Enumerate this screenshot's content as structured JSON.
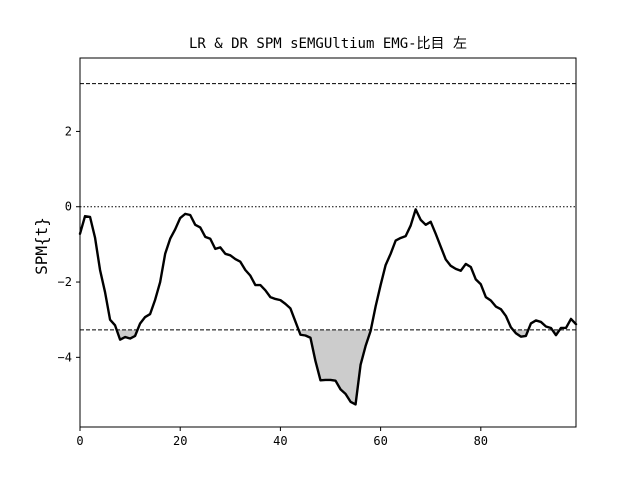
{
  "chart_data": {
    "type": "line",
    "title": "LR & DR SPM sEMGUltium EMG-比目 左",
    "xlabel": "",
    "ylabel": "SPM{t}",
    "xlim": [
      0,
      99
    ],
    "ylim": [
      -5.85,
      3.95
    ],
    "xticks": [
      0,
      20,
      40,
      60,
      80
    ],
    "yticks": [
      -4,
      -2,
      0,
      2
    ],
    "grid": false,
    "legend": "none",
    "colors": {
      "line": "#000000",
      "threshold": "#000000",
      "zero": "#000000",
      "shade": "#cccccc",
      "axes": "#000000",
      "background": "#ffffff"
    },
    "threshold": {
      "upper": 3.27,
      "lower": -3.27
    },
    "zero_line": 0,
    "series": [
      {
        "x": [
          0,
          1,
          2,
          3,
          4,
          5,
          6,
          7,
          8,
          9,
          10,
          11,
          12,
          13,
          14,
          15,
          16,
          17,
          18,
          19,
          20,
          21,
          22,
          23,
          24,
          25,
          26,
          27,
          28,
          29,
          30,
          31,
          32,
          33,
          34,
          35,
          36,
          37,
          38,
          39,
          40,
          41,
          42,
          43,
          44,
          45,
          46,
          47,
          48,
          49,
          50,
          51,
          52,
          53,
          54,
          55,
          56,
          57,
          58,
          59,
          60,
          61,
          62,
          63,
          64,
          65,
          66,
          67,
          68,
          69,
          70,
          71,
          72,
          73,
          74,
          75,
          76,
          77,
          78,
          79,
          80,
          81,
          82,
          83,
          84,
          85,
          86,
          87,
          88,
          89,
          90,
          91,
          92,
          93,
          94,
          95,
          96,
          97,
          98,
          99
        ],
        "values": [
          -0.72,
          -0.25,
          -0.27,
          -0.82,
          -1.68,
          -2.27,
          -3.0,
          -3.15,
          -3.53,
          -3.46,
          -3.5,
          -3.43,
          -3.1,
          -2.93,
          -2.85,
          -2.47,
          -2.0,
          -1.25,
          -0.85,
          -0.6,
          -0.3,
          -0.19,
          -0.22,
          -0.48,
          -0.55,
          -0.8,
          -0.85,
          -1.12,
          -1.08,
          -1.25,
          -1.29,
          -1.39,
          -1.46,
          -1.68,
          -1.83,
          -2.08,
          -2.08,
          -2.22,
          -2.4,
          -2.45,
          -2.48,
          -2.58,
          -2.7,
          -3.05,
          -3.4,
          -3.42,
          -3.48,
          -4.1,
          -4.61,
          -4.6,
          -4.6,
          -4.62,
          -4.85,
          -4.97,
          -5.18,
          -5.25,
          -4.2,
          -3.7,
          -3.3,
          -2.65,
          -2.08,
          -1.55,
          -1.25,
          -0.9,
          -0.83,
          -0.78,
          -0.5,
          -0.07,
          -0.35,
          -0.48,
          -0.4,
          -0.72,
          -1.06,
          -1.4,
          -1.57,
          -1.65,
          -1.7,
          -1.52,
          -1.6,
          -1.93,
          -2.06,
          -2.4,
          -2.49,
          -2.65,
          -2.72,
          -2.9,
          -3.2,
          -3.36,
          -3.45,
          -3.43,
          -3.1,
          -3.02,
          -3.06,
          -3.18,
          -3.22,
          -3.41,
          -3.22,
          -3.22,
          -2.98,
          -3.12
        ]
      }
    ]
  }
}
